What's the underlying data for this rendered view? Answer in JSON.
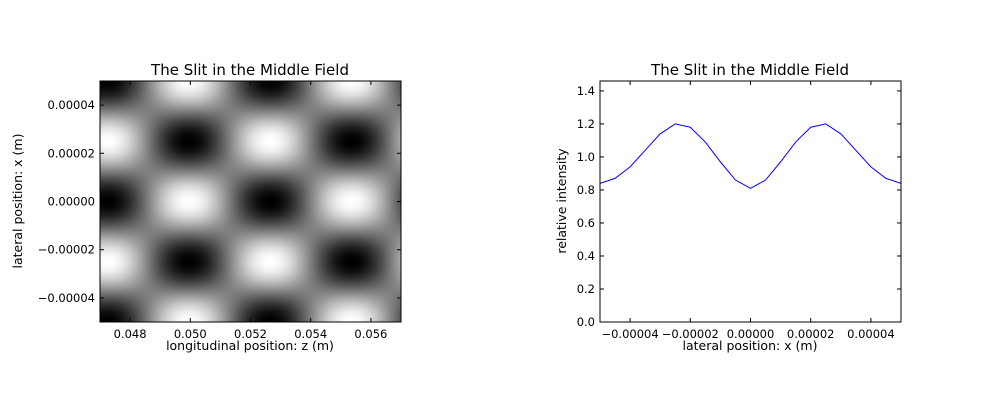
{
  "chart_data": [
    {
      "type": "heatmap",
      "title": "The Slit in the Middle Field",
      "xlabel": "longitudinal position: z (m)",
      "ylabel": "lateral position: x (m)",
      "xlim": [
        0.047,
        0.057
      ],
      "ylim": [
        -5e-05,
        5e-05
      ],
      "xticks": [
        0.048,
        0.05,
        0.052,
        0.054,
        0.056
      ],
      "xticklabels": [
        "0.048",
        "0.050",
        "0.052",
        "0.054",
        "0.056"
      ],
      "yticks": [
        4e-05,
        2e-05,
        0.0,
        -2e-05,
        -4e-05
      ],
      "yticklabels": [
        "0.00004",
        "0.00002",
        "0.00000",
        "−0.00002",
        "−0.00004"
      ],
      "colormap": "gray",
      "pattern": {
        "lateral_period": 5e-05,
        "longitudinal_period": 0.0054,
        "bright_on_axis_z": [
          0.047,
          0.05735
        ],
        "dark_on_axis_z": 0.05265
      }
    },
    {
      "type": "line",
      "title": "The Slit in the Middle Field",
      "xlabel": "lateral position: x (m)",
      "ylabel": "relative intensity",
      "xlim": [
        -5e-05,
        5e-05
      ],
      "ylim": [
        0.0,
        1.46
      ],
      "xticks": [
        -4e-05,
        -2e-05,
        0.0,
        2e-05,
        4e-05
      ],
      "xticklabels": [
        "−0.00004",
        "−0.00002",
        "0.00000",
        "0.00002",
        "0.00004"
      ],
      "yticks": [
        0.0,
        0.2,
        0.4,
        0.6,
        0.8,
        1.0,
        1.2,
        1.4
      ],
      "yticklabels": [
        "0.0",
        "0.2",
        "0.4",
        "0.6",
        "0.8",
        "1.0",
        "1.2",
        "1.4"
      ],
      "series": [
        {
          "color": "#0000ff",
          "x": [
            -5e-05,
            -4.5e-05,
            -4e-05,
            -3.5e-05,
            -3e-05,
            -2.5e-05,
            -2e-05,
            -1.5e-05,
            -1e-05,
            -5e-06,
            0.0,
            5e-06,
            1e-05,
            1.5e-05,
            2e-05,
            2.5e-05,
            3e-05,
            3.5e-05,
            4e-05,
            4.5e-05,
            5e-05
          ],
          "y": [
            0.84,
            0.87,
            0.94,
            1.04,
            1.14,
            1.2,
            1.18,
            1.09,
            0.97,
            0.86,
            0.81,
            0.86,
            0.97,
            1.09,
            1.18,
            1.2,
            1.14,
            1.04,
            0.94,
            0.87,
            0.84
          ]
        }
      ]
    }
  ]
}
